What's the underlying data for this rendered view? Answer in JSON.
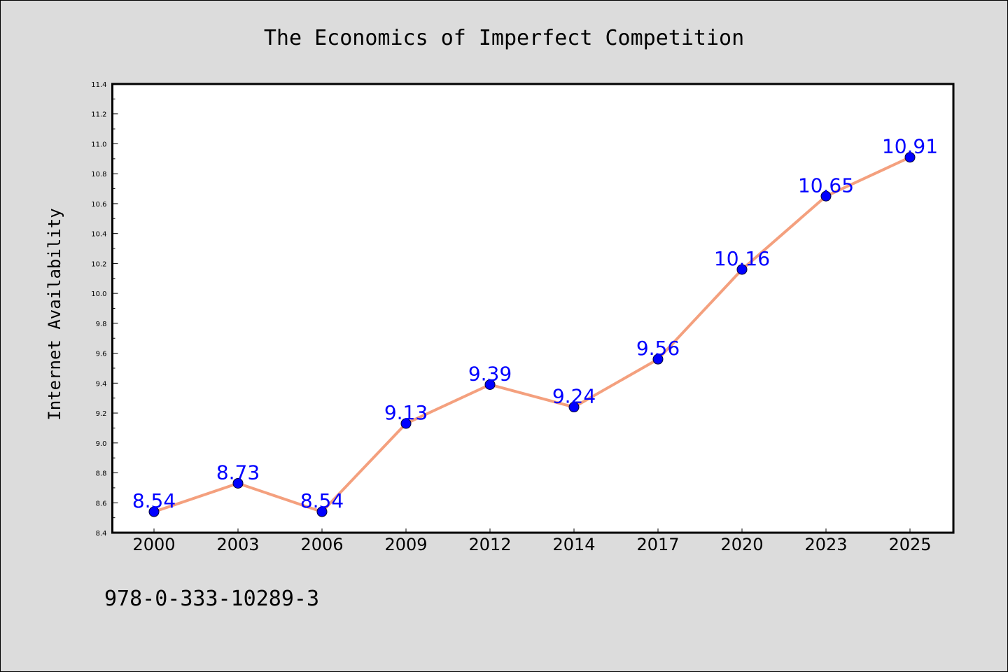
{
  "colors": {
    "background": "#dcdcdc",
    "plot_background": "#ffffff",
    "line": "#f4a07e",
    "marker": "#0000ff",
    "data_label": "#0000ff",
    "text": "#000000"
  },
  "footer": {
    "isbn": "978-0-333-10289-3"
  },
  "chart_data": {
    "type": "line",
    "title": "The Economics of Imperfect Competition",
    "xlabel": "",
    "ylabel": "Internet Availability",
    "categories": [
      "2000",
      "2003",
      "2006",
      "2009",
      "2012",
      "2014",
      "2017",
      "2020",
      "2023",
      "2025"
    ],
    "series": [
      {
        "values": [
          8.54,
          8.73,
          8.54,
          9.13,
          9.39,
          9.24,
          9.56,
          10.16,
          10.65,
          10.91
        ],
        "data_labels": [
          "8.54",
          "8.73",
          "8.54",
          "9.13",
          "9.39",
          "9.24",
          "9.56",
          "10.16",
          "10.65",
          "10.91"
        ]
      }
    ],
    "ylim": [
      8.4,
      11.4
    ],
    "yticks": [
      "8.4",
      "8.6",
      "8.8",
      "9.0",
      "9.2",
      "9.4",
      "9.6",
      "9.8",
      "10.0",
      "10.2",
      "10.4",
      "10.6",
      "10.8",
      "11.0",
      "11.2",
      "11.4"
    ],
    "grid": false,
    "legend": "none",
    "marker": "circle"
  }
}
